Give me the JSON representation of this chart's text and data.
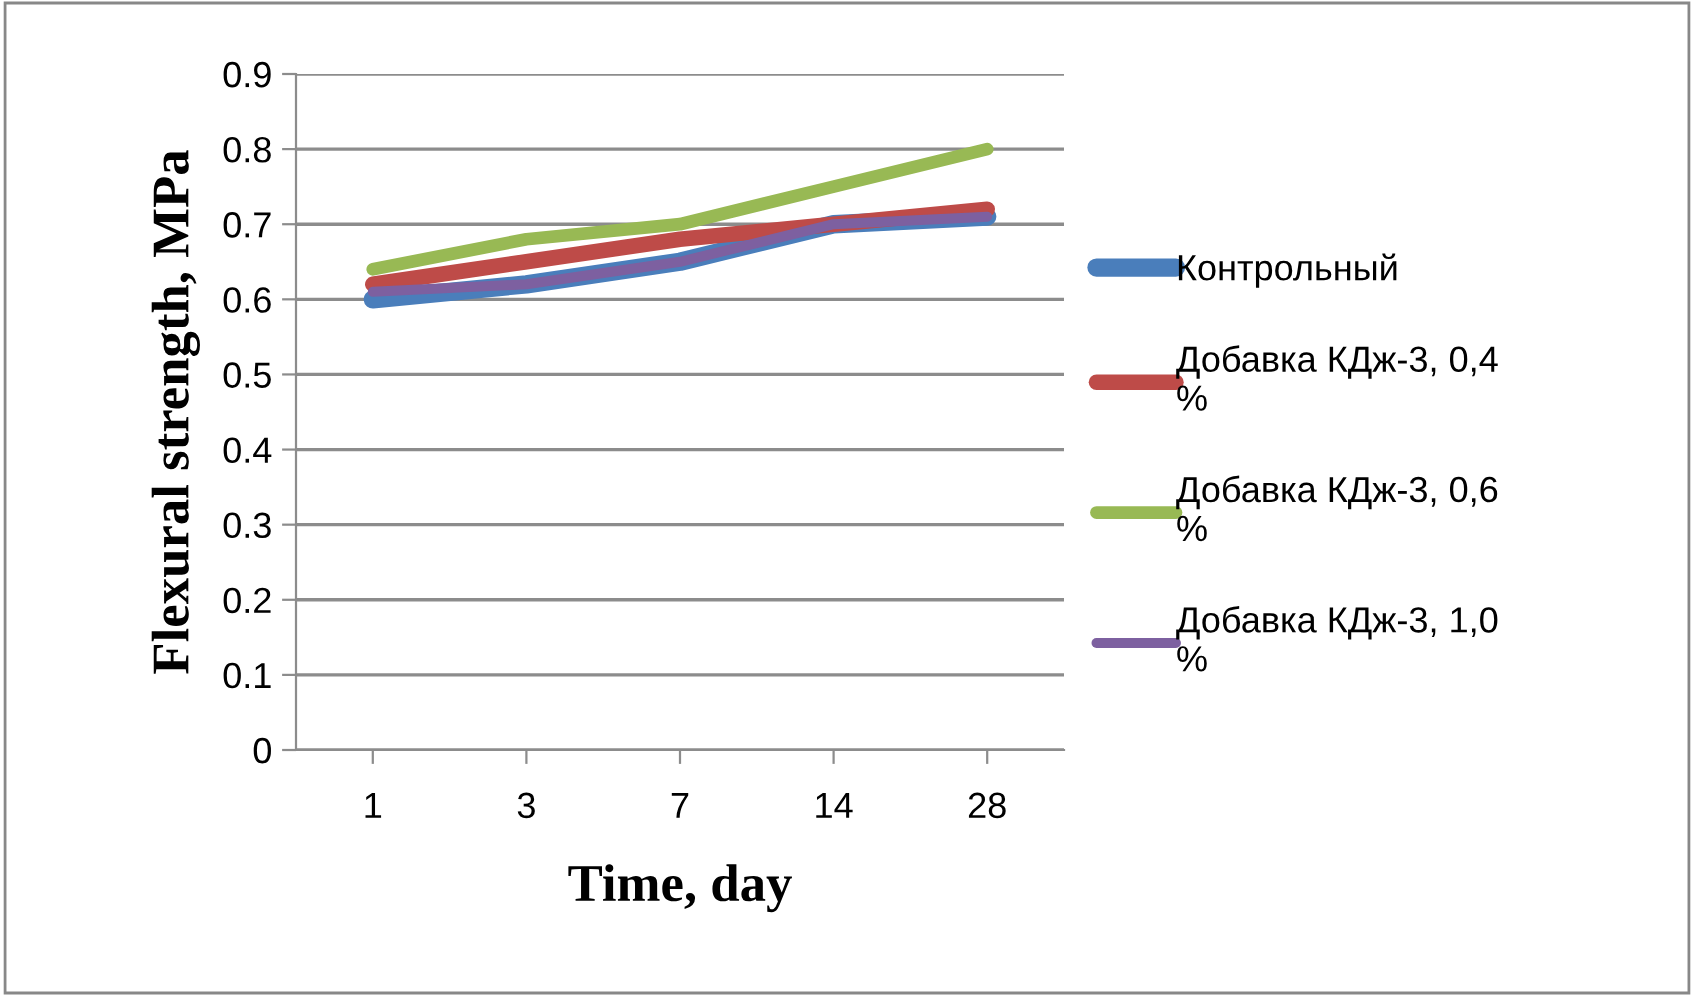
{
  "chart_data": {
    "type": "line",
    "xlabel": "Time, day",
    "ylabel": "Flexural strength, MPa",
    "categories": [
      "1",
      "3",
      "7",
      "14",
      "28"
    ],
    "series": [
      {
        "name": "Контрольный",
        "color": "#4a7ebb",
        "values": [
          0.6,
          0.62,
          0.65,
          0.7,
          0.71
        ]
      },
      {
        "name": "Добавка КДж-3, 0,4 %",
        "color": "#be4b48",
        "values": [
          0.62,
          0.65,
          0.68,
          0.7,
          0.72
        ]
      },
      {
        "name": "Добавка КДж-3, 0,6 %",
        "color": "#98b954",
        "values": [
          0.64,
          0.68,
          0.7,
          0.75,
          0.8
        ]
      },
      {
        "name": "Добавка КДж-3, 1,0 %",
        "color": "#7d60a0",
        "values": [
          0.61,
          0.62,
          0.65,
          0.7,
          0.71
        ]
      }
    ],
    "ylim": [
      0,
      0.9
    ],
    "yticks": [
      0,
      0.1,
      0.2,
      0.3,
      0.4,
      0.5,
      0.6,
      0.7,
      0.8,
      0.9
    ],
    "grid": "y",
    "legend": "right",
    "marker": "none",
    "line_style": "solid"
  }
}
